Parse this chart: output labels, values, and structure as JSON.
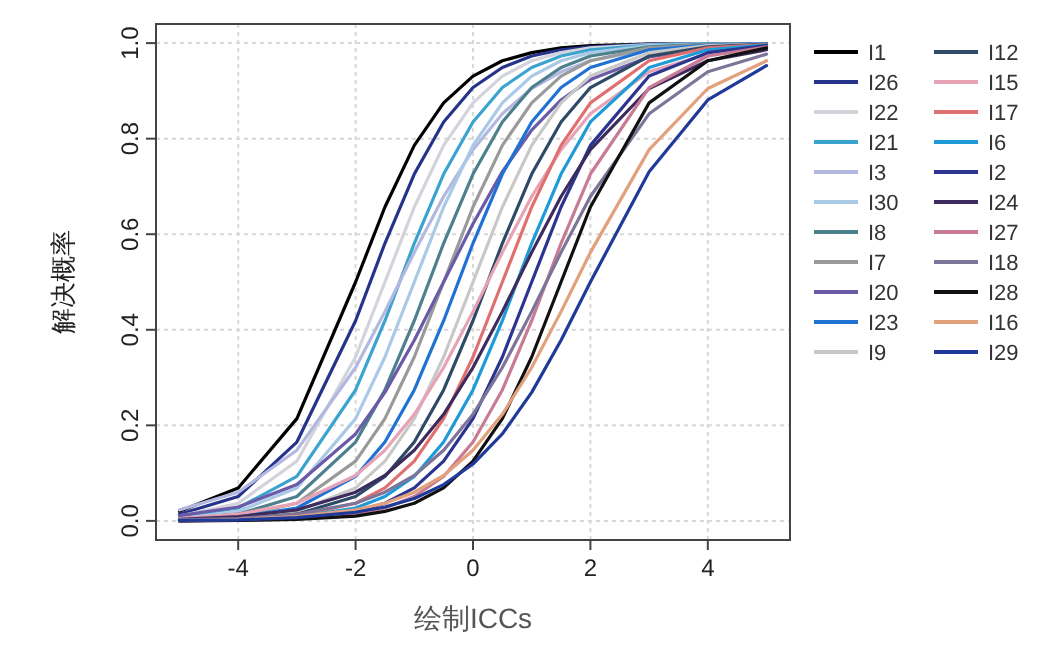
{
  "chart_data": {
    "type": "line",
    "ylabel": "解决概率",
    "annotations": [
      "绘制ICCs"
    ],
    "x": [
      -5,
      -4,
      -3,
      -2,
      -1.5,
      -1,
      -0.5,
      0,
      0.5,
      1,
      1.5,
      2,
      3,
      4,
      5
    ],
    "series": [
      {
        "name": "I1",
        "color": "#000000",
        "values": [
          0.02,
          0.069,
          0.214,
          0.5,
          0.657,
          0.786,
          0.875,
          0.931,
          0.963,
          0.98,
          0.99,
          0.995,
          0.998,
          0.999,
          0.999
        ]
      },
      {
        "name": "I26",
        "color": "#26338a",
        "values": [
          0.014,
          0.051,
          0.165,
          0.419,
          0.581,
          0.726,
          0.835,
          0.907,
          0.949,
          0.973,
          0.986,
          0.992,
          0.998,
          0.999,
          0.999
        ]
      },
      {
        "name": "I22",
        "color": "#d3d3dc",
        "values": [
          0.01,
          0.037,
          0.125,
          0.343,
          0.5,
          0.657,
          0.786,
          0.875,
          0.931,
          0.963,
          0.98,
          0.99,
          0.997,
          0.999,
          0.999
        ]
      },
      {
        "name": "I21",
        "color": "#3ba3cf",
        "values": [
          0.008,
          0.027,
          0.093,
          0.274,
          0.419,
          0.581,
          0.726,
          0.835,
          0.907,
          0.949,
          0.973,
          0.986,
          0.996,
          0.999,
          0.999
        ]
      },
      {
        "name": "I3",
        "color": "#b3b8e0",
        "values": [
          0.023,
          0.06,
          0.148,
          0.321,
          0.438,
          0.562,
          0.679,
          0.777,
          0.852,
          0.905,
          0.94,
          0.963,
          0.986,
          0.995,
          0.998
        ]
      },
      {
        "name": "I30",
        "color": "#a9c9e6",
        "values": [
          0.005,
          0.02,
          0.069,
          0.214,
          0.343,
          0.5,
          0.657,
          0.786,
          0.875,
          0.931,
          0.963,
          0.98,
          0.995,
          0.998,
          0.999
        ]
      },
      {
        "name": "I8",
        "color": "#4d7f8c",
        "values": [
          0.004,
          0.014,
          0.051,
          0.165,
          0.274,
          0.419,
          0.581,
          0.726,
          0.835,
          0.907,
          0.949,
          0.973,
          0.992,
          0.998,
          0.999
        ]
      },
      {
        "name": "I7",
        "color": "#9a9a9a",
        "values": [
          0.003,
          0.01,
          0.037,
          0.125,
          0.214,
          0.343,
          0.5,
          0.657,
          0.786,
          0.875,
          0.931,
          0.963,
          0.99,
          0.997,
          0.999
        ]
      },
      {
        "name": "I20",
        "color": "#6a5aa8",
        "values": [
          0.011,
          0.029,
          0.076,
          0.182,
          0.269,
          0.378,
          0.5,
          0.622,
          0.731,
          0.818,
          0.881,
          0.924,
          0.971,
          0.989,
          0.996
        ]
      },
      {
        "name": "I23",
        "color": "#1f72d4",
        "values": [
          0.002,
          0.008,
          0.027,
          0.093,
          0.165,
          0.274,
          0.419,
          0.581,
          0.726,
          0.835,
          0.907,
          0.949,
          0.986,
          0.996,
          0.999
        ]
      },
      {
        "name": "I9",
        "color": "#c8c8c8",
        "values": [
          0.002,
          0.005,
          0.02,
          0.069,
          0.125,
          0.214,
          0.343,
          0.5,
          0.657,
          0.786,
          0.875,
          0.931,
          0.98,
          0.995,
          0.998
        ]
      },
      {
        "name": "I12",
        "color": "#2e4a66",
        "values": [
          0.001,
          0.004,
          0.014,
          0.051,
          0.093,
          0.165,
          0.274,
          0.419,
          0.581,
          0.726,
          0.835,
          0.907,
          0.973,
          0.992,
          0.998
        ]
      },
      {
        "name": "I15",
        "color": "#e7a3b5",
        "values": [
          0.005,
          0.014,
          0.037,
          0.095,
          0.148,
          0.223,
          0.321,
          0.438,
          0.562,
          0.679,
          0.777,
          0.852,
          0.94,
          0.977,
          0.991
        ]
      },
      {
        "name": "I17",
        "color": "#e0706f",
        "values": [
          0.001,
          0.003,
          0.01,
          0.037,
          0.069,
          0.125,
          0.214,
          0.343,
          0.5,
          0.657,
          0.786,
          0.875,
          0.963,
          0.99,
          0.997
        ]
      },
      {
        "name": "I6",
        "color": "#1e9bd7",
        "values": [
          0.001,
          0.002,
          0.008,
          0.027,
          0.051,
          0.093,
          0.165,
          0.274,
          0.419,
          0.581,
          0.726,
          0.835,
          0.949,
          0.986,
          0.996
        ]
      },
      {
        "name": "I2",
        "color": "#2b3590",
        "values": [
          0,
          0.002,
          0.005,
          0.02,
          0.037,
          0.069,
          0.125,
          0.214,
          0.343,
          0.5,
          0.657,
          0.786,
          0.931,
          0.98,
          0.995
        ]
      },
      {
        "name": "I24",
        "color": "#3d2b5e",
        "values": [
          0.003,
          0.009,
          0.023,
          0.06,
          0.095,
          0.148,
          0.223,
          0.321,
          0.438,
          0.562,
          0.679,
          0.777,
          0.905,
          0.963,
          0.986
        ]
      },
      {
        "name": "I27",
        "color": "#c77b95",
        "values": [
          0,
          0.001,
          0.004,
          0.014,
          0.027,
          0.051,
          0.093,
          0.165,
          0.274,
          0.419,
          0.581,
          0.726,
          0.907,
          0.973,
          0.992
        ]
      },
      {
        "name": "I18",
        "color": "#7d7599",
        "values": [
          0.002,
          0.005,
          0.014,
          0.037,
          0.06,
          0.095,
          0.148,
          0.223,
          0.321,
          0.438,
          0.562,
          0.679,
          0.852,
          0.94,
          0.977
        ]
      },
      {
        "name": "I28",
        "color": "#111111",
        "values": [
          0,
          0.001,
          0.003,
          0.01,
          0.02,
          0.037,
          0.069,
          0.125,
          0.214,
          0.343,
          0.5,
          0.657,
          0.875,
          0.963,
          0.99
        ]
      },
      {
        "name": "I16",
        "color": "#e2a07d",
        "values": [
          0.001,
          0.003,
          0.009,
          0.023,
          0.037,
          0.06,
          0.095,
          0.148,
          0.223,
          0.321,
          0.438,
          0.562,
          0.777,
          0.905,
          0.963
        ]
      },
      {
        "name": "I29",
        "color": "#1f3a9a",
        "values": [
          0.001,
          0.002,
          0.007,
          0.018,
          0.029,
          0.047,
          0.076,
          0.119,
          0.182,
          0.269,
          0.378,
          0.5,
          0.731,
          0.881,
          0.953
        ]
      }
    ],
    "xlim": [
      -5.4,
      5.4
    ],
    "ylim": [
      -0.04,
      1.04
    ],
    "xticks": [
      -4,
      -2,
      0,
      2,
      4
    ],
    "yticks": [
      {
        "value": 0,
        "label": "0.0"
      },
      {
        "value": 0.2,
        "label": "0.2"
      },
      {
        "value": 0.4,
        "label": "0.4"
      },
      {
        "value": 0.6,
        "label": "0.6"
      },
      {
        "value": 0.8,
        "label": "0.8"
      },
      {
        "value": 1,
        "label": "1.0"
      }
    ],
    "grid": true,
    "legend": "right",
    "line_style": "solid"
  }
}
